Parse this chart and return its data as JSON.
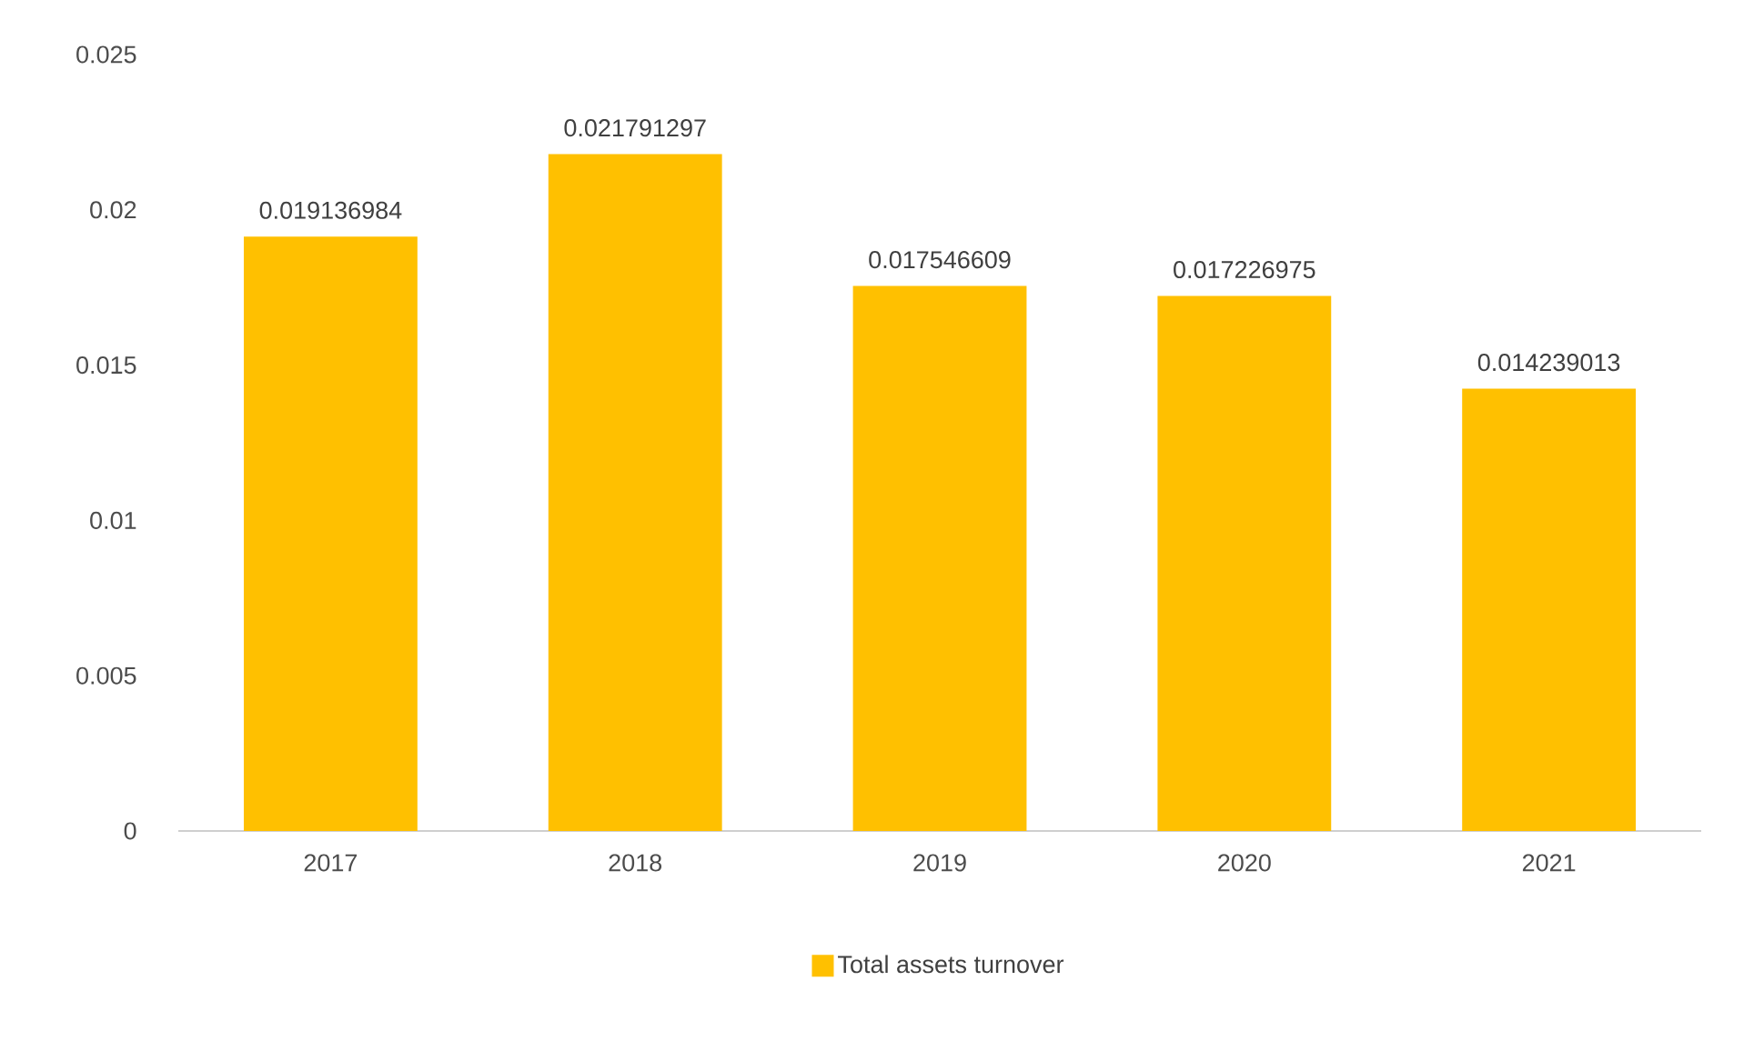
{
  "chart_data": {
    "type": "bar",
    "categories": [
      "2017",
      "2018",
      "2019",
      "2020",
      "2021"
    ],
    "series": [
      {
        "name": "Total assets turnover",
        "color": "#ffc000",
        "values": [
          0.019136984,
          0.021791297,
          0.017546609,
          0.017226975,
          0.014239013
        ]
      }
    ],
    "ylim": [
      0,
      0.025
    ],
    "yticks": [
      0,
      0.005,
      0.01,
      0.015,
      0.02,
      0.025
    ],
    "data_labels": true,
    "legend": "bottom"
  }
}
